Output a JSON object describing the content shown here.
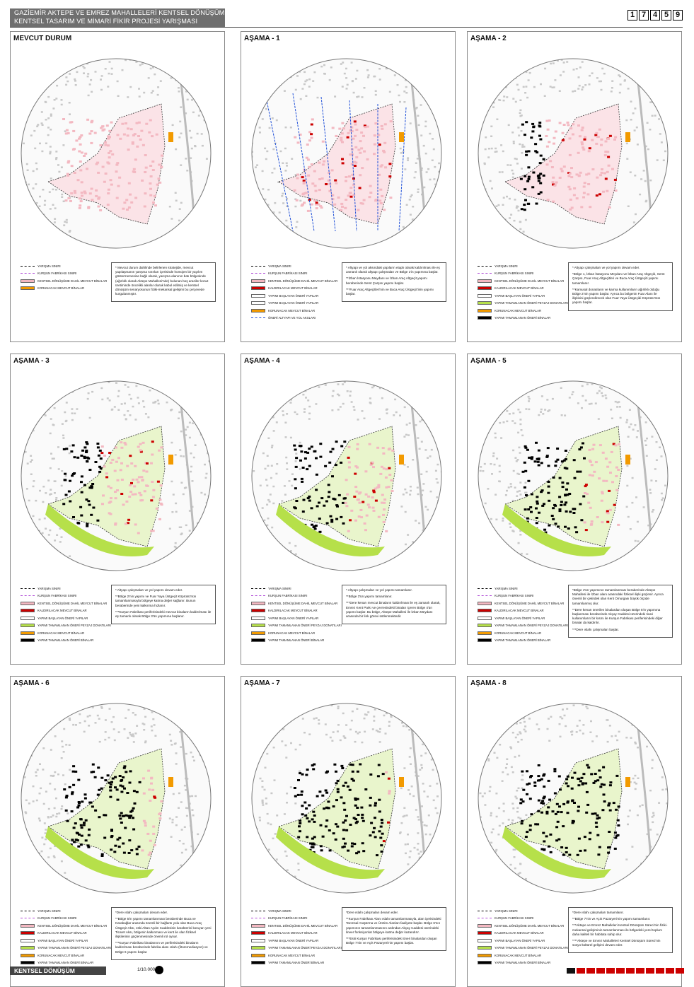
{
  "header": {
    "line1": "GAZİEMİR AKTEPE VE EMREZ MAHALLELERİ KENTSEL DÖNÜŞÜM ALANI",
    "line2": "KENTSEL TASARIM VE MİMARİ FİKİR PROJESİ YARIŞMASI",
    "code": [
      "1",
      "7",
      "4",
      "5",
      "9"
    ]
  },
  "legend_labels": {
    "sinir": "YARIŞMA SINIRI",
    "kursun": "KURŞUN FABRİKASI SINIRI",
    "mevcut": "KENTSEL DÖNÜŞÜME DAHİL MEVCUT BİNALAR",
    "kaldir": "KALDIRILACAK MEVCUT BİNALAR",
    "baslayan": "YAPIMI BAŞLAYAN ÖNERİ YAPILAR",
    "peyzaj": "YAPIMI TAMAMLANAN ÖNERİ PEYZAJ DONATILARI",
    "koru": "KORUNACAK MEVCUT BİNALAR",
    "tamam": "YAPIMI TAMAMLANAN ÖNERİ BİNALAR",
    "yol": "ÖNERİ ALTYAPI VE YOL AKSLARI"
  },
  "colors": {
    "mevcut": "#f3b8c1",
    "kaldir": "#cc0000",
    "peyzaj": "#b6e04a",
    "koru": "#f29a00",
    "tamam": "#000000"
  },
  "panels": [
    {
      "title": "MEVCUT DURUM",
      "desc": [
        "* Mevcut durum dahilinde belirlenen stratejide, mevcut yapılaşmanın yarışma sınırları içerisinde homojen bir yayılım göstermemesine bağlı olarak, yarışma alanının batı bölgesinde (ağırlıklı olarak Aktepe Mahallesi'nde) bulunan boş araziler konut üretiminde öncelikli alanlar olarak kabul edilmiş ve kentsel dönüşüm senaryosunun fiziki-mekansal gelişimi bu çerçevede kurgulanmıştır."
      ]
    },
    {
      "title": "AŞAMA - 1",
      "desc": [
        "* Altyapı ve yol aksındaki yapıların etaplı olarak kaldırılması ile eş zamanlı olarak altyapı çalışmaları ve Bölge 1'in yapımına başlar.",
        "**İzban İstasyonu Meydanı ve İzban Araç Altgeçit yapımı beraberinde Semt Çarşısı yapımı başlar.",
        "***Fuar Araç Altgeçitleri'nin ve Buca Araç Üstgeçit'inin yapımı başlar."
      ]
    },
    {
      "title": "AŞAMA - 2",
      "desc": [
        "* Altyapı çalışmaları ve yol yapımı devam eder.",
        "*Bölge 1, İzban İstasyonu Meydanı ve İzban Araç Altgeçiti, Semt Çarşısı, Fuar Araç Altgeçitleri ve Buca Araç Üstgeçiti yapımı tamamlanır.",
        "**Kamusal donatıların ve karma kullanımların ağırlıklı olduğu Bölge 2'nin yapımı başlar. Ayrıca bu bölgenin Fuar Alanı ile ilişkisini güçlendirecek olan Fuar Yaya Üstgeçidi Köprüsü'nün yapımı başlar."
      ]
    },
    {
      "title": "AŞAMA - 3",
      "desc": [
        "* Altyapı çalışmaları ve yol yapımı devam eder.",
        "**Bölge 2'nin yapımı ve Fuar Yaya Üstgeçit Köprüsü'nün tamamlanmasıyla bölgeye katma değer sağlanır. Bunun beraberinde yeni kalkınma hızlanır.",
        "***Kurşun Fabrikası periferisindeki mevcut binaların kaldırılması ile eş zamanlı olarak Bölge 3'ün yapımına başlanır."
      ]
    },
    {
      "title": "AŞAMA - 4",
      "desc": [
        "* Altyapı çalışmaları ve yol yapımı tamamlanır.",
        "**Bölge 3'ün yapımı tamamlanır.",
        "***Dere kenarı mevcut binaların kaldırılması ile eş zamanlı olarak, Emrez Kent Parkı ve çevresindeki binaları içeren Bölge 4'ün yapımı başlar. Bu bölge, Aktepe Mahallesi ile İzban Meydanı arasında bir link görevi üstlenmektedir."
      ]
    },
    {
      "title": "AŞAMA - 5",
      "desc": [
        "*Bölge 4'ün yapımının tamamlanması beraberinde Aktepe Mahallesi ile İzban alanı arasındaki fiziksel ilişki güçlenir. Ayrıca önemli bir çekirdek olan Kent Omurgası büyük ölçüde tamamlanmış olur.",
        "**Dere kenarı önerilen binalardan oluşan Bölge 5'in yapımına başlanması beraberinde Akçay Caddesi üzerindeki ticari kullanımların bir kısmı ile Kurşun Fabrikası periferisindeki diğer binalar da kaldırılır.",
        "***Dere ıslahı çalışmaları başlar."
      ]
    },
    {
      "title": "AŞAMA - 6",
      "desc": [
        "*Dere ıslahı çalışmaları devam eder.",
        "**Bölge 5'in yapımı tamamlanması beraberinde Buca ve Karabağlar arasında önemli bir bağlantı yolu olan Buca Araç Üstgeçit Aksı, eski Altan Aydın Caddesinin karakterini koruyan yeni Ticaret Aksı, bölgenin kalkınması ve kent ile olan fiziksel ilişkilerinin güçlenmesinde önemli rol oynar.",
        "***Kurşun Fabrikası binalarının ve periferisindeki binaların kaldırılması beraberinde fabrika alanı ıslahı (fitoremediasyon) ve Bölge 6 yapımı başlar."
      ]
    },
    {
      "title": "AŞAMA - 7",
      "desc": [
        "*Dere ıslahı çalışmaları devam eder.",
        "**Kurşun Fabrikası Alanı ıslahı tamamlanmasıyla, alan içerisindeki Tarımsal Araştırma ve Üretim Alanları faaliyete başlar. Bölge 6'nın yapımının tamamlanmasının ardından Akçay Caddesi üzerindeki lineer fonksiyonlar bölgeye katma değer kazandırır.",
        "***Eski Kurşun Fabrikası periferisindeki öneri binalardan oluşan Bölge 7'nin ve Açık Pazaryeri'nin yapımı başlar."
      ]
    },
    {
      "title": "AŞAMA - 8",
      "desc": [
        "*Dere ıslahı çalışmaları tamamlanır.",
        "**Bölge 7'nin ve Açık Pazaryeri'nin yapımı tamamlanır.",
        "***Aktepe ve Emrez Mahalleleri Kentsel Dönüşüm Süreci'nin fiziki-mekansal gelişiminin tamamlanması ile bölgedeki yerel toplum daha kaliteli bir habitata sahip olur.",
        "****Aktepe ve Emrez Mahalleleri Kentsel Dönüşüm Süreci'nin sosyo-kültürel gelişimi devam eder."
      ]
    }
  ],
  "footer": {
    "title": "KENTSEL DÖNÜŞÜM SENARYOSU",
    "scale": "1/10.000"
  }
}
